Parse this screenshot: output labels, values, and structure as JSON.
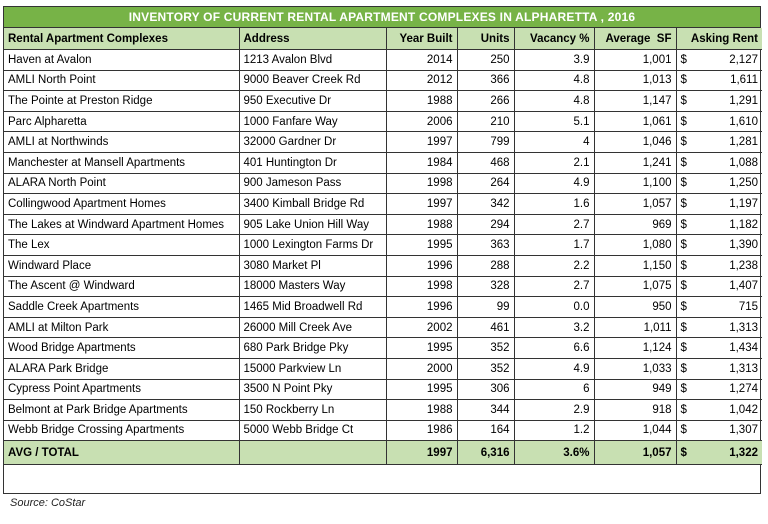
{
  "title": "INVENTORY OF CURRENT RENTAL APARTMENT COMPLEXES IN ALPHARETTA , 2016",
  "columns": [
    "Rental Apartment Complexes",
    "Address",
    "Year Built",
    "Units",
    "Vacancy %",
    "Average  SF",
    "Asking Rent"
  ],
  "currency": "$",
  "rows": [
    {
      "name": "Haven at Avalon",
      "address": "1213 Avalon Blvd",
      "year": "2014",
      "units": "250",
      "vacancy": "3.9",
      "sf": "1,001",
      "rent": "2,127"
    },
    {
      "name": "AMLI North Point",
      "address": "9000 Beaver Creek Rd",
      "year": "2012",
      "units": "366",
      "vacancy": "4.8",
      "sf": "1,013",
      "rent": "1,611"
    },
    {
      "name": "The Pointe at Preston Ridge",
      "address": "950 Executive Dr",
      "year": "1988",
      "units": "266",
      "vacancy": "4.8",
      "sf": "1,147",
      "rent": "1,291"
    },
    {
      "name": "Parc Alpharetta",
      "address": "1000 Fanfare Way",
      "year": "2006",
      "units": "210",
      "vacancy": "5.1",
      "sf": "1,061",
      "rent": "1,610"
    },
    {
      "name": "AMLI at Northwinds",
      "address": "32000 Gardner Dr",
      "year": "1997",
      "units": "799",
      "vacancy": "4",
      "sf": "1,046",
      "rent": "1,281"
    },
    {
      "name": "Manchester at Mansell Apartments",
      "address": "401 Huntington Dr",
      "year": "1984",
      "units": "468",
      "vacancy": "2.1",
      "sf": "1,241",
      "rent": "1,088"
    },
    {
      "name": "ALARA North Point",
      "address": "900 Jameson Pass",
      "year": "1998",
      "units": "264",
      "vacancy": "4.9",
      "sf": "1,100",
      "rent": "1,250"
    },
    {
      "name": "Collingwood Apartment Homes",
      "address": "3400 Kimball Bridge Rd",
      "year": "1997",
      "units": "342",
      "vacancy": "1.6",
      "sf": "1,057",
      "rent": "1,197"
    },
    {
      "name": "The Lakes at Windward Apartment Homes",
      "address": "905 Lake Union Hill Way",
      "year": "1988",
      "units": "294",
      "vacancy": "2.7",
      "sf": "969",
      "rent": "1,182"
    },
    {
      "name": "The Lex",
      "address": "1000 Lexington Farms Dr",
      "year": "1995",
      "units": "363",
      "vacancy": "1.7",
      "sf": "1,080",
      "rent": "1,390"
    },
    {
      "name": "Windward Place",
      "address": "3080 Market Pl",
      "year": "1996",
      "units": "288",
      "vacancy": "2.2",
      "sf": "1,150",
      "rent": "1,238"
    },
    {
      "name": "The Ascent @ Windward",
      "address": "18000 Masters Way",
      "year": "1998",
      "units": "328",
      "vacancy": "2.7",
      "sf": "1,075",
      "rent": "1,407"
    },
    {
      "name": "Saddle Creek Apartments",
      "address": "1465 Mid Broadwell Rd",
      "year": "1996",
      "units": "99",
      "vacancy": "0.0",
      "sf": "950",
      "rent": "715"
    },
    {
      "name": "AMLI at Milton Park",
      "address": "26000 Mill Creek Ave",
      "year": "2002",
      "units": "461",
      "vacancy": "3.2",
      "sf": "1,011",
      "rent": "1,313"
    },
    {
      "name": "Wood Bridge Apartments",
      "address": "680 Park Bridge Pky",
      "year": "1995",
      "units": "352",
      "vacancy": "6.6",
      "sf": "1,124",
      "rent": "1,434"
    },
    {
      "name": "ALARA Park Bridge",
      "address": "15000 Parkview Ln",
      "year": "2000",
      "units": "352",
      "vacancy": "4.9",
      "sf": "1,033",
      "rent": "1,313"
    },
    {
      "name": "Cypress Point Apartments",
      "address": "3500 N Point Pky",
      "year": "1995",
      "units": "306",
      "vacancy": "6",
      "sf": "949",
      "rent": "1,274"
    },
    {
      "name": "Belmont at Park Bridge Apartments",
      "address": "150 Rockberry Ln",
      "year": "1988",
      "units": "344",
      "vacancy": "2.9",
      "sf": "918",
      "rent": "1,042"
    },
    {
      "name": "Webb Bridge Crossing Apartments",
      "address": "5000 Webb Bridge Ct",
      "year": "1986",
      "units": "164",
      "vacancy": "1.2",
      "sf": "1,044",
      "rent": "1,307"
    }
  ],
  "total": {
    "label": "AVG / TOTAL",
    "address": "",
    "year": "1997",
    "units": "6,316",
    "vacancy": "3.6%",
    "sf": "1,057",
    "rent": "1,322"
  },
  "source": "Source:  CoStar",
  "colors": {
    "title_bg": "#77b347",
    "header_bg": "#c8e0b2"
  }
}
